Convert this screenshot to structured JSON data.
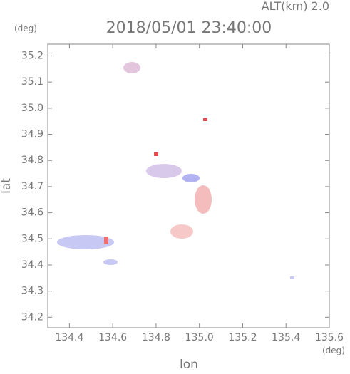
{
  "chart_data": {
    "type": "map",
    "title": "2018/05/01 23:40:00",
    "subtitle": "ALT(km) 2.0",
    "x_label": "lon",
    "y_label": "lat",
    "x_unit": "(deg)",
    "y_unit": "(deg)",
    "xlim": [
      134.3,
      135.6
    ],
    "xticks": [
      134.4,
      134.6,
      134.8,
      {
        "value": 135.0,
        "label": "135.0"
      },
      135.2,
      135.4,
      135.6
    ],
    "ylim": [
      34.16,
      35.245
    ],
    "yticks": [
      {
        "value": 34.2,
        "label": "34.2"
      },
      34.3,
      34.4,
      {
        "value": 34.5,
        "label": "34.5"
      },
      34.6,
      34.7,
      34.8,
      34.9,
      {
        "value": 35.0,
        "label": "35.0"
      },
      35.1,
      35.2
    ]
  }
}
